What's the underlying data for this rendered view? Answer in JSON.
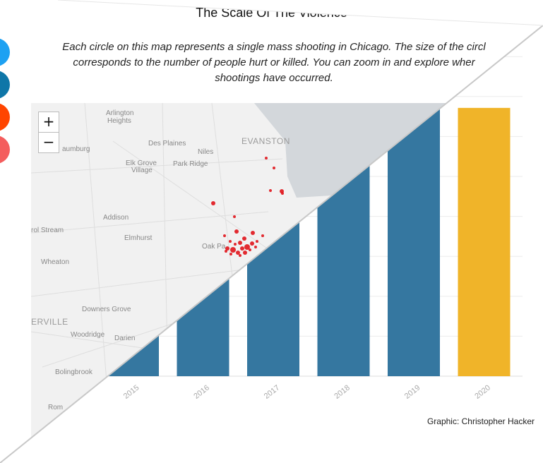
{
  "title": "The Scale Of The Violence",
  "subtitle_lines": [
    "Each circle on this map represents a single mass shooting in Chicago. The size of the circl",
    "corresponds to the number of people hurt or killed. You can zoom in and explore wher",
    "shootings have occurred."
  ],
  "map": {
    "zoom_in_label": "+",
    "zoom_out_label": "−",
    "place_labels": [
      "Arlington Heights",
      "Des Plaines",
      "Niles",
      "EVANSTON",
      "Schaumburg",
      "Elk Grove Village",
      "Park Ridge",
      "Addison",
      "Carol Stream",
      "Elmhurst",
      "Oak Park",
      "Wheaton",
      "Downers Grove",
      "Naperville",
      "Woodridge",
      "Darien",
      "Bolingbrook",
      "Romeoville"
    ],
    "marker_color": "#e0141b"
  },
  "chart_data": {
    "type": "bar",
    "categories": [
      "2015",
      "2016",
      "2017",
      "2018",
      "2019",
      "2020"
    ],
    "values": [
      45,
      86,
      127,
      170,
      216,
      193
    ],
    "colors": [
      "#3577a0",
      "#3577a0",
      "#3577a0",
      "#3577a0",
      "#3577a0",
      "#f0b429"
    ],
    "ylim": [
      0,
      230
    ],
    "grid": true
  },
  "credit": "Graphic: Christopher Hacker",
  "colors": {
    "bar": "#3577a0",
    "highlight_bar": "#f0b429",
    "map_background": "#f1f1f1",
    "lake": "#d3d7db",
    "marker": "#e0141b"
  },
  "share_buttons": [
    {
      "icon": "twitter-icon",
      "color": "#1da1f2"
    },
    {
      "icon": "linkedin-icon",
      "color": "#0e76a8"
    },
    {
      "icon": "reddit-icon",
      "color": "#ff4500"
    },
    {
      "icon": "share-icon",
      "color": "#f45d5d"
    }
  ]
}
